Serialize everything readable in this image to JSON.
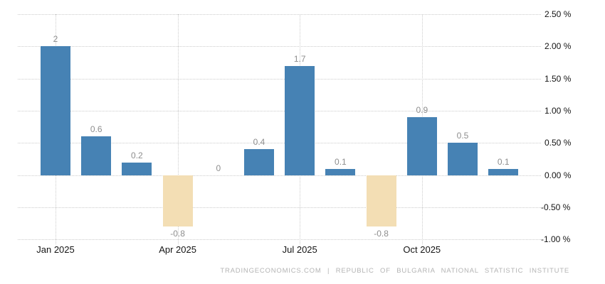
{
  "footer": "TRADINGECONOMICS.COM | REPUBLIC OF BULGARIA NATIONAL STATISTIC INSTITUTE",
  "chart_data": {
    "type": "bar",
    "title": "",
    "xlabel": "",
    "ylabel": "",
    "unit": "%",
    "ylim": [
      -1.0,
      2.5
    ],
    "grid": "dotted",
    "legend": "none",
    "bars": [
      {
        "value": 2,
        "label": "2"
      },
      {
        "value": 0.6,
        "label": "0.6"
      },
      {
        "value": 0.2,
        "label": "0.2"
      },
      {
        "value": -0.8,
        "label": "-0.8"
      },
      {
        "value": 0,
        "label": "0"
      },
      {
        "value": 0.4,
        "label": "0.4"
      },
      {
        "value": 1.7,
        "label": "1.7"
      },
      {
        "value": 0.1,
        "label": "0.1"
      },
      {
        "value": -0.8,
        "label": "-0.8"
      },
      {
        "value": 0.9,
        "label": "0.9"
      },
      {
        "value": 0.5,
        "label": "0.5"
      },
      {
        "value": 0.1,
        "label": "0.1"
      }
    ],
    "x_ticks": [
      {
        "bar_index": 0,
        "label": "Jan 2025"
      },
      {
        "bar_index": 3,
        "label": "Apr 2025"
      },
      {
        "bar_index": 6,
        "label": "Jul 2025"
      },
      {
        "bar_index": 9,
        "label": "Oct 2025"
      }
    ],
    "y_ticks": [
      {
        "value": 2.5,
        "label": "2.50 %"
      },
      {
        "value": 2.0,
        "label": "2.00 %"
      },
      {
        "value": 1.5,
        "label": "1.50 %"
      },
      {
        "value": 1.0,
        "label": "1.00 %"
      },
      {
        "value": 0.5,
        "label": "0.50 %"
      },
      {
        "value": 0.0,
        "label": "0.00 %"
      },
      {
        "value": -0.5,
        "label": "-0.50 %"
      },
      {
        "value": -1.0,
        "label": "-1.00 %"
      }
    ],
    "colors": {
      "positive_bar": "#4682b4",
      "negative_bar": "#f3deb4",
      "value_label": "#8e8e8e",
      "axis_label": "#141414",
      "gridline": "#cccccc",
      "footer_text": "#b4b4b4"
    }
  }
}
